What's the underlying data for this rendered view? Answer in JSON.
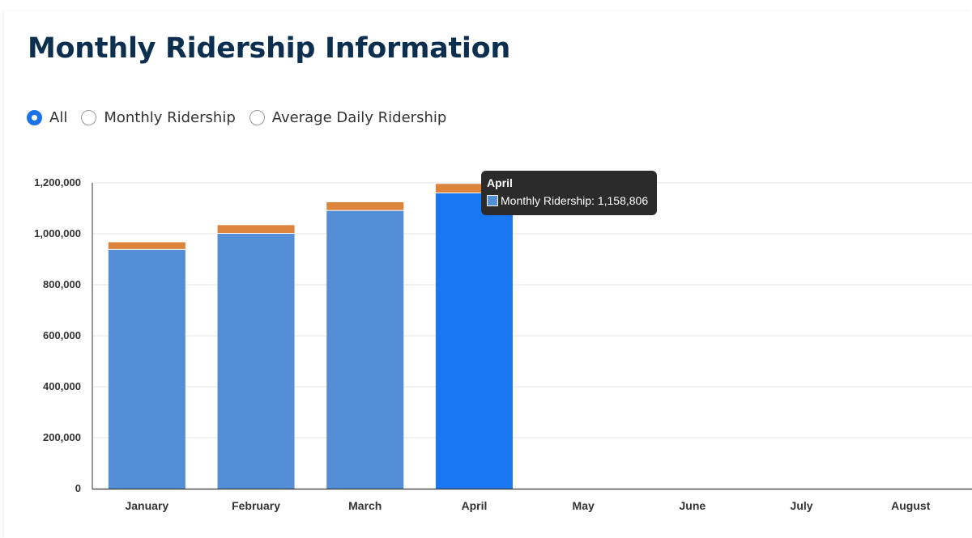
{
  "header": {
    "title": "Monthly Ridership Information"
  },
  "filter": {
    "options": [
      {
        "label": "All",
        "selected": true
      },
      {
        "label": "Monthly Ridership",
        "selected": false
      },
      {
        "label": "Average Daily Ridership",
        "selected": false
      }
    ]
  },
  "colors": {
    "monthly": "#548ed6",
    "average_daily": "#dd843c",
    "highlight": "#1a77f2",
    "radio_accent": "#1a73e8"
  },
  "chart_data": {
    "type": "bar",
    "stacked": true,
    "categories": [
      "January",
      "February",
      "March",
      "April",
      "May",
      "June",
      "July",
      "August"
    ],
    "y_ticks": [
      "0",
      "200,000",
      "400,000",
      "600,000",
      "800,000",
      "1,000,000",
      "1,200,000"
    ],
    "ylim": [
      0,
      1200000
    ],
    "grid": true,
    "series": [
      {
        "key": "monthly",
        "name": "Monthly Ridership",
        "values": [
          937000,
          1000000,
          1090000,
          1158806,
          null,
          null,
          null,
          null
        ]
      },
      {
        "key": "average_daily",
        "name": "Average Daily Ridership",
        "values": [
          30000,
          34000,
          34000,
          37000,
          null,
          null,
          null,
          null
        ]
      }
    ],
    "highlighted_category": "April",
    "tooltip": {
      "title": "April",
      "text": "Monthly Ridership: 1,158,806"
    }
  }
}
